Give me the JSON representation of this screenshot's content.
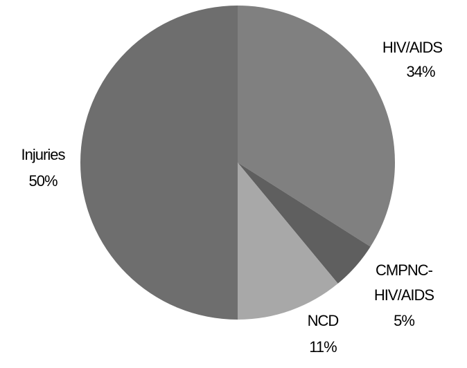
{
  "chart_data": {
    "type": "pie",
    "categories": [
      "HIV/AIDS",
      "CMPNC-HIV/AIDS",
      "NCD",
      "Injuries"
    ],
    "values": [
      34,
      5,
      11,
      50
    ],
    "value_labels": [
      "34%",
      "5%",
      "11%",
      "50%"
    ],
    "colors": [
      "#808080",
      "#5f5f5f",
      "#a8a8a8",
      "#6e6e6e"
    ]
  }
}
